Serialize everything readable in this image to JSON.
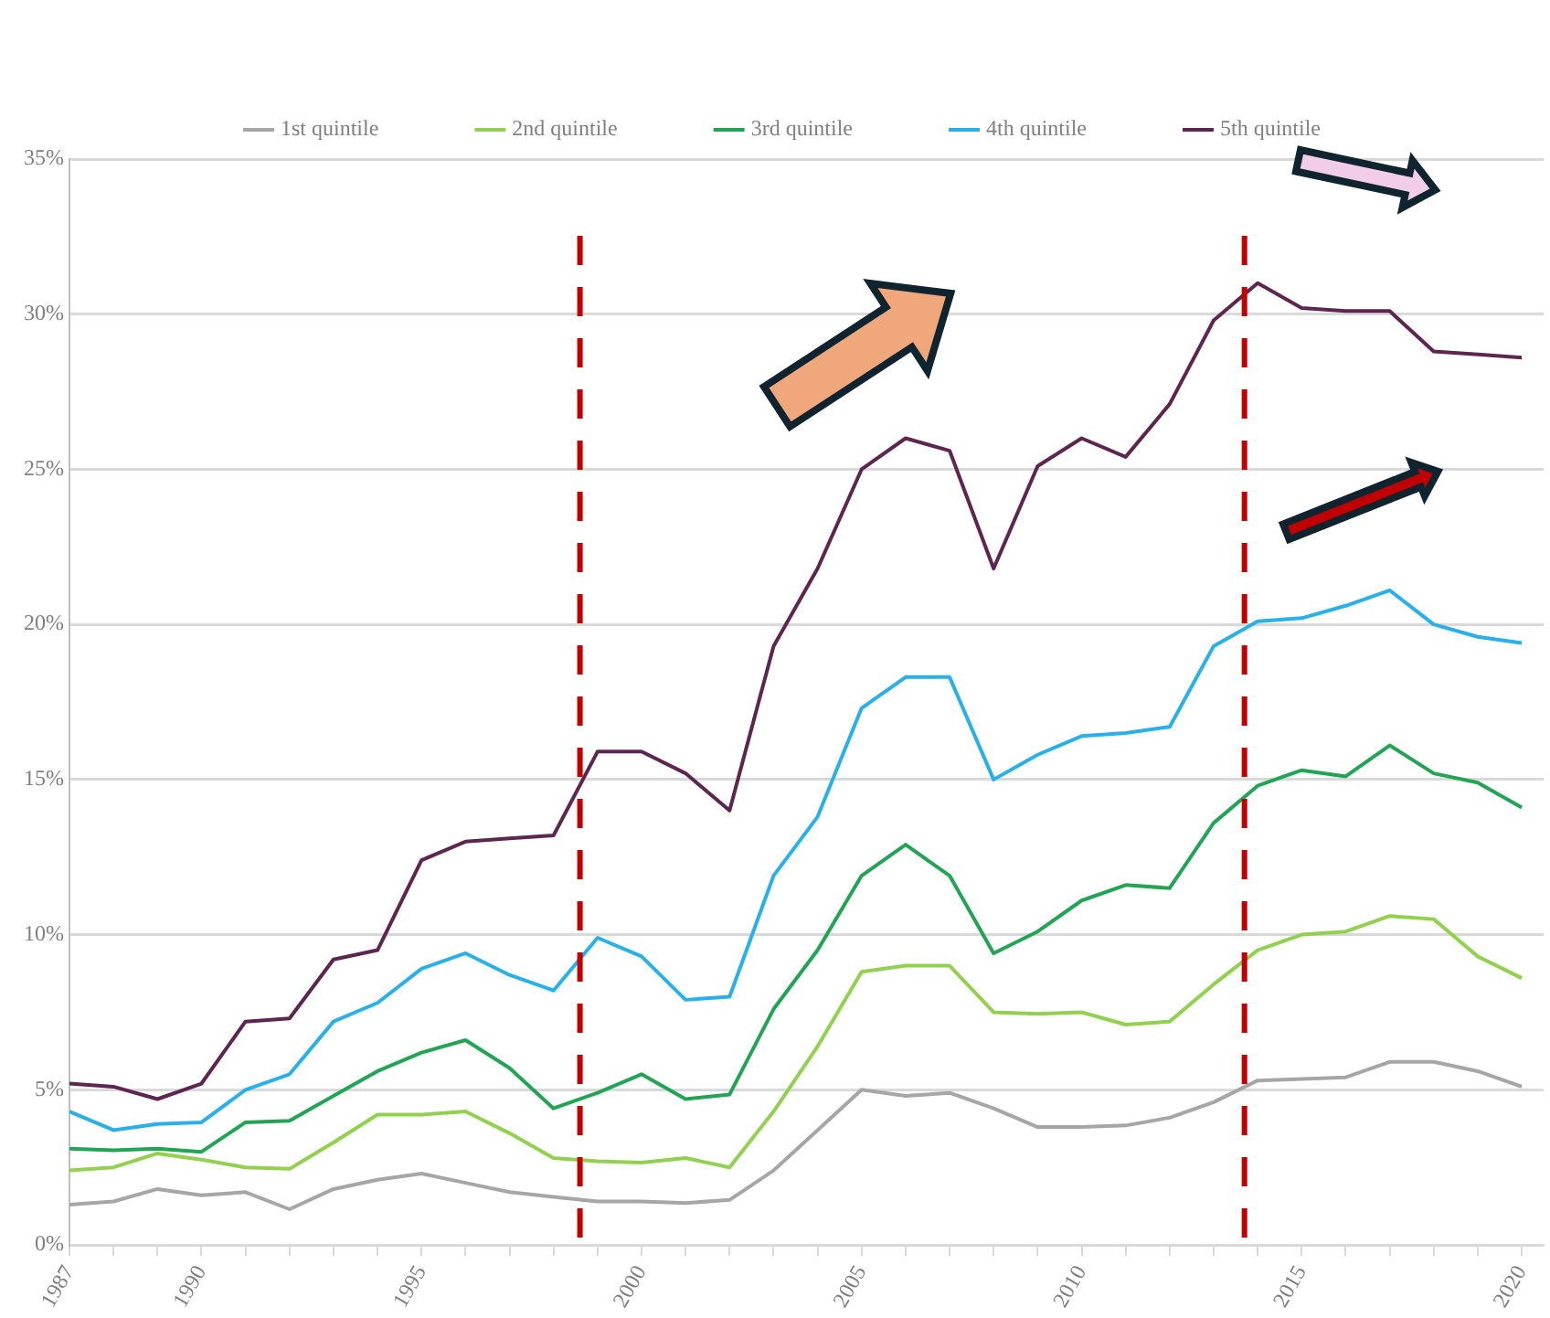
{
  "chart_data": {
    "type": "line",
    "x": [
      1987,
      1988,
      1989,
      1990,
      1991,
      1992,
      1993,
      1994,
      1995,
      1996,
      1997,
      1998,
      1999,
      2000,
      2001,
      2002,
      2003,
      2004,
      2005,
      2006,
      2007,
      2008,
      2009,
      2010,
      2011,
      2012,
      2013,
      2014,
      2015,
      2016,
      2017,
      2018,
      2019,
      2020
    ],
    "series": [
      {
        "name": "1st quintile",
        "color": "#a6a6a6",
        "values": [
          1.3,
          1.4,
          1.8,
          1.6,
          1.7,
          1.15,
          1.8,
          2.1,
          2.3,
          2.0,
          1.7,
          1.55,
          1.4,
          1.4,
          1.35,
          1.45,
          2.4,
          3.7,
          5.0,
          4.8,
          4.9,
          4.4,
          3.8,
          3.8,
          3.85,
          4.1,
          4.6,
          5.3,
          5.35,
          5.4,
          5.9,
          5.9,
          5.6,
          5.1
        ]
      },
      {
        "name": "2nd quintile",
        "color": "#92d050",
        "values": [
          2.4,
          2.5,
          2.95,
          2.75,
          2.5,
          2.45,
          3.3,
          4.2,
          4.2,
          4.3,
          3.6,
          2.8,
          2.7,
          2.65,
          2.8,
          2.5,
          4.3,
          6.4,
          8.8,
          9.0,
          9.0,
          7.5,
          7.45,
          7.5,
          7.1,
          7.2,
          8.4,
          9.5,
          10.0,
          10.1,
          10.6,
          10.5,
          9.3,
          8.6
        ]
      },
      {
        "name": "3rd quintile",
        "color": "#23a455",
        "values": [
          3.1,
          3.05,
          3.1,
          3.0,
          3.95,
          4.0,
          4.8,
          5.6,
          6.2,
          6.6,
          5.7,
          4.4,
          4.9,
          5.5,
          4.7,
          4.85,
          7.6,
          9.5,
          11.9,
          12.9,
          11.9,
          9.4,
          10.1,
          11.1,
          11.6,
          11.5,
          13.6,
          14.8,
          15.3,
          15.1,
          16.1,
          15.2,
          14.9,
          14.1
        ]
      },
      {
        "name": "4th quintile",
        "color": "#2ab0e8",
        "values": [
          4.3,
          3.7,
          3.9,
          3.95,
          5.0,
          5.5,
          7.2,
          7.8,
          8.9,
          9.4,
          8.7,
          8.2,
          9.9,
          9.3,
          7.9,
          8.0,
          11.9,
          13.8,
          17.3,
          18.3,
          18.3,
          15.0,
          15.8,
          16.4,
          16.5,
          16.7,
          19.3,
          20.1,
          20.2,
          20.6,
          21.1,
          20.0,
          19.6,
          19.4
        ]
      },
      {
        "name": "5th quintile",
        "color": "#5c2650",
        "values": [
          5.2,
          5.1,
          4.7,
          5.2,
          7.2,
          7.3,
          9.2,
          9.5,
          12.4,
          13.0,
          13.1,
          13.2,
          15.9,
          15.9,
          15.2,
          14.0,
          19.3,
          21.8,
          25.0,
          26.0,
          25.6,
          21.8,
          25.1,
          26.0,
          25.4,
          27.1,
          29.8,
          31.0,
          30.2,
          30.1,
          30.1,
          28.8,
          28.7,
          28.6
        ]
      }
    ],
    "xlim": [
      1987,
      2020.5
    ],
    "xticks": [
      1987,
      {
        "value": 1988,
        "label": null
      },
      {
        "value": 1989,
        "label": null
      },
      1990,
      {
        "value": 1991,
        "label": null
      },
      {
        "value": 1992,
        "label": null
      },
      {
        "value": 1993,
        "label": null
      },
      {
        "value": 1994,
        "label": null
      },
      1995,
      {
        "value": 1996,
        "label": null
      },
      {
        "value": 1997,
        "label": null
      },
      {
        "value": 1998,
        "label": null
      },
      {
        "value": 1999,
        "label": null
      },
      2000,
      {
        "value": 2001,
        "label": null
      },
      {
        "value": 2002,
        "label": null
      },
      {
        "value": 2003,
        "label": null
      },
      {
        "value": 2004,
        "label": null
      },
      2005,
      {
        "value": 2006,
        "label": null
      },
      {
        "value": 2007,
        "label": null
      },
      {
        "value": 2008,
        "label": null
      },
      {
        "value": 2009,
        "label": null
      },
      2010,
      {
        "value": 2011,
        "label": null
      },
      {
        "value": 2012,
        "label": null
      },
      {
        "value": 2013,
        "label": null
      },
      {
        "value": 2014,
        "label": null
      },
      2015,
      {
        "value": 2016,
        "label": null
      },
      {
        "value": 2017,
        "label": null
      },
      {
        "value": 2018,
        "label": null
      },
      {
        "value": 2019,
        "label": null
      },
      2020
    ],
    "ylim": [
      0,
      35
    ],
    "yticks": [
      {
        "value": 0,
        "label": "0%"
      },
      {
        "value": 5,
        "label": "5%"
      },
      {
        "value": 10,
        "label": "10%"
      },
      {
        "value": 15,
        "label": "15%"
      },
      {
        "value": 20,
        "label": "20%"
      },
      {
        "value": 25,
        "label": "25%"
      },
      {
        "value": 30,
        "label": "30%"
      },
      {
        "value": 35,
        "label": "35%"
      }
    ],
    "ref_lines": [
      {
        "axis": "x",
        "value": 1998.6,
        "color": "#c00000",
        "line_style": "dashed"
      },
      {
        "axis": "x",
        "value": 2013.7,
        "color": "#c00000",
        "line_style": "dashed"
      }
    ],
    "grid": "y",
    "legend": "top",
    "marker": "none",
    "line_style": "solid"
  }
}
